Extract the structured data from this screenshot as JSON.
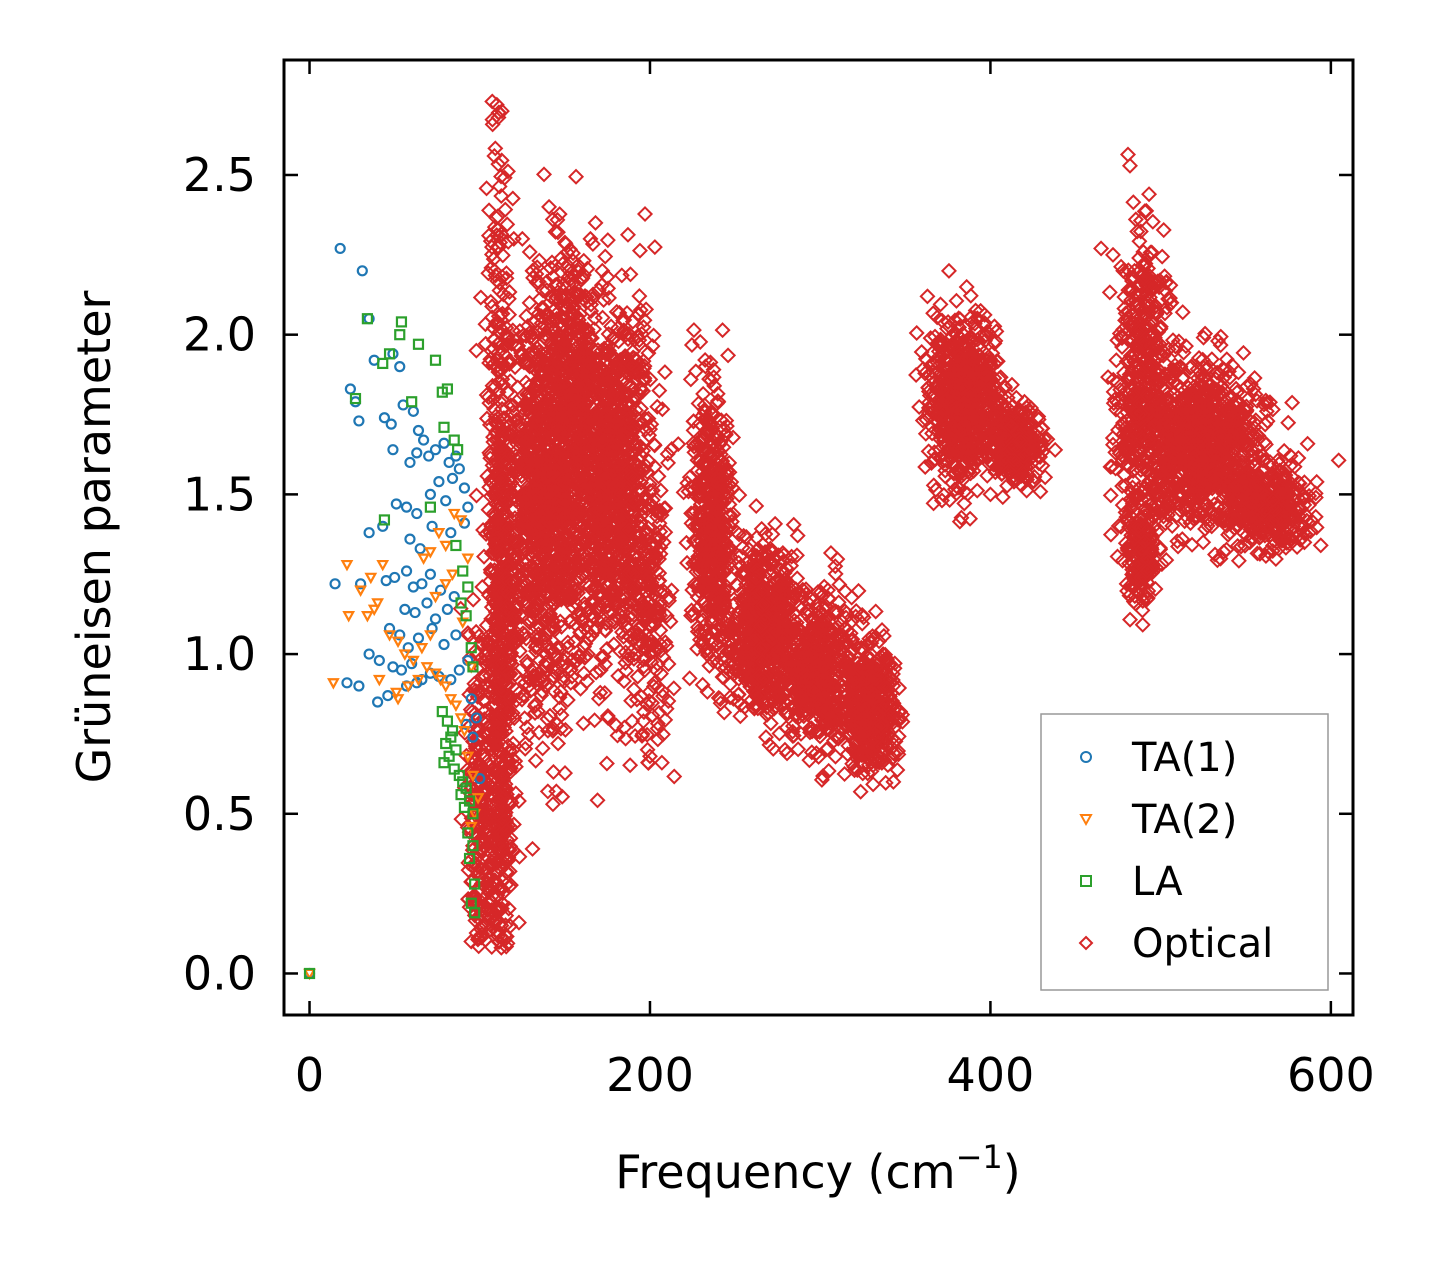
{
  "chart_data": {
    "type": "scatter",
    "title": "",
    "xlabel": "Frequency (cm",
    "xlabel_sup": "−1",
    "xlabel_close": ")",
    "ylabel": "Grüneisen parameter",
    "xlim": [
      -15,
      613
    ],
    "ylim": [
      -0.13,
      2.86
    ],
    "xticks": [
      0,
      200,
      400,
      600
    ],
    "xtick_labels": [
      "0",
      "200",
      "400",
      "600"
    ],
    "yticks": [
      0.0,
      0.5,
      1.0,
      1.5,
      2.0,
      2.5
    ],
    "ytick_labels": [
      "0.0",
      "0.5",
      "1.0",
      "1.5",
      "2.0",
      "2.5"
    ],
    "grid": false,
    "legend_position": "bottom-right",
    "series": [
      {
        "name": "TA(1)",
        "marker": "circle",
        "color": "#1f77b4",
        "points": [
          [
            0,
            0
          ],
          [
            18,
            2.27
          ],
          [
            31,
            2.2
          ],
          [
            35,
            2.05
          ],
          [
            24,
            1.83
          ],
          [
            38,
            1.92
          ],
          [
            49,
            1.94
          ],
          [
            53,
            1.9
          ],
          [
            27,
            1.79
          ],
          [
            29,
            1.73
          ],
          [
            44,
            1.74
          ],
          [
            48,
            1.72
          ],
          [
            55,
            1.78
          ],
          [
            61,
            1.76
          ],
          [
            64,
            1.7
          ],
          [
            67,
            1.67
          ],
          [
            49,
            1.64
          ],
          [
            59,
            1.6
          ],
          [
            63,
            1.63
          ],
          [
            70,
            1.62
          ],
          [
            74,
            1.64
          ],
          [
            79,
            1.66
          ],
          [
            82,
            1.6
          ],
          [
            86,
            1.62
          ],
          [
            88,
            1.58
          ],
          [
            91,
            1.52
          ],
          [
            93,
            1.46
          ],
          [
            51,
            1.47
          ],
          [
            57,
            1.46
          ],
          [
            63,
            1.44
          ],
          [
            71,
            1.5
          ],
          [
            76,
            1.54
          ],
          [
            80,
            1.48
          ],
          [
            84,
            1.55
          ],
          [
            35,
            1.38
          ],
          [
            43,
            1.4
          ],
          [
            59,
            1.36
          ],
          [
            65,
            1.33
          ],
          [
            72,
            1.4
          ],
          [
            83,
            1.38
          ],
          [
            91,
            1.41
          ],
          [
            15,
            1.22
          ],
          [
            30,
            1.22
          ],
          [
            45,
            1.23
          ],
          [
            50,
            1.24
          ],
          [
            57,
            1.26
          ],
          [
            61,
            1.21
          ],
          [
            66,
            1.22
          ],
          [
            71,
            1.25
          ],
          [
            77,
            1.2
          ],
          [
            85,
            1.18
          ],
          [
            56,
            1.14
          ],
          [
            62,
            1.13
          ],
          [
            69,
            1.16
          ],
          [
            74,
            1.11
          ],
          [
            81,
            1.14
          ],
          [
            47,
            1.08
          ],
          [
            53,
            1.06
          ],
          [
            58,
            1.02
          ],
          [
            64,
            1.05
          ],
          [
            72,
            1.08
          ],
          [
            79,
            1.03
          ],
          [
            86,
            1.06
          ],
          [
            35,
            1.0
          ],
          [
            41,
            0.98
          ],
          [
            49,
            0.96
          ],
          [
            54,
            0.95
          ],
          [
            60,
            0.97
          ],
          [
            66,
            0.92
          ],
          [
            71,
            0.94
          ],
          [
            76,
            0.93
          ],
          [
            83,
            0.92
          ],
          [
            88,
            0.95
          ],
          [
            93,
            0.98
          ],
          [
            22,
            0.91
          ],
          [
            29,
            0.9
          ],
          [
            46,
            0.87
          ],
          [
            40,
            0.85
          ],
          [
            57,
            0.9
          ],
          [
            63,
            0.91
          ],
          [
            95,
            0.86
          ],
          [
            98,
            0.8
          ],
          [
            92,
            0.78
          ],
          [
            96,
            0.74
          ],
          [
            100,
            0.61
          ]
        ]
      },
      {
        "name": "TA(2)",
        "marker": "triangle-down",
        "color": "#ff7f0e",
        "points": [
          [
            0,
            0
          ],
          [
            22,
            1.28
          ],
          [
            36,
            1.24
          ],
          [
            43,
            1.28
          ],
          [
            30,
            1.2
          ],
          [
            40,
            1.16
          ],
          [
            23,
            1.12
          ],
          [
            34,
            1.12
          ],
          [
            38,
            1.14
          ],
          [
            47,
            1.06
          ],
          [
            52,
            1.04
          ],
          [
            56,
            1.0
          ],
          [
            61,
            0.98
          ],
          [
            66,
            1.02
          ],
          [
            69,
            0.96
          ],
          [
            74,
            0.94
          ],
          [
            77,
            0.92
          ],
          [
            80,
            0.9
          ],
          [
            83,
            0.86
          ],
          [
            86,
            0.84
          ],
          [
            89,
            0.8
          ],
          [
            91,
            0.76
          ],
          [
            14,
            0.91
          ],
          [
            41,
            0.92
          ],
          [
            51,
            0.88
          ],
          [
            52,
            0.86
          ],
          [
            58,
            0.9
          ],
          [
            64,
            0.92
          ],
          [
            71,
            1.06
          ],
          [
            74,
            1.18
          ],
          [
            80,
            1.22
          ],
          [
            84,
            1.25
          ],
          [
            67,
            1.3
          ],
          [
            71,
            1.32
          ],
          [
            76,
            1.38
          ],
          [
            80,
            1.34
          ],
          [
            85,
            1.44
          ],
          [
            89,
            1.42
          ],
          [
            93,
            1.3
          ],
          [
            90,
            1.1
          ],
          [
            95,
            0.96
          ],
          [
            93,
            0.68
          ],
          [
            96,
            0.62
          ],
          [
            99,
            0.55
          ],
          [
            97,
            0.5
          ],
          [
            95,
            0.46
          ]
        ]
      },
      {
        "name": "LA",
        "marker": "square",
        "color": "#2ca02c",
        "points": [
          [
            0,
            0
          ],
          [
            34,
            2.05
          ],
          [
            54,
            2.04
          ],
          [
            53,
            2.0
          ],
          [
            64,
            1.97
          ],
          [
            74,
            1.92
          ],
          [
            43,
            1.91
          ],
          [
            47,
            1.94
          ],
          [
            27,
            1.8
          ],
          [
            60,
            1.79
          ],
          [
            81,
            1.83
          ],
          [
            78,
            1.82
          ],
          [
            79,
            1.71
          ],
          [
            85,
            1.67
          ],
          [
            87,
            1.64
          ],
          [
            44,
            1.42
          ],
          [
            71,
            1.46
          ],
          [
            86,
            1.34
          ],
          [
            90,
            1.26
          ],
          [
            93,
            1.21
          ],
          [
            89,
            1.16
          ],
          [
            92,
            1.12
          ],
          [
            95,
            1.02
          ],
          [
            96,
            0.96
          ],
          [
            78,
            0.82
          ],
          [
            81,
            0.79
          ],
          [
            83,
            0.74
          ],
          [
            80,
            0.72
          ],
          [
            84,
            0.76
          ],
          [
            86,
            0.7
          ],
          [
            79,
            0.66
          ],
          [
            82,
            0.68
          ],
          [
            85,
            0.64
          ],
          [
            88,
            0.62
          ],
          [
            90,
            0.6
          ],
          [
            92,
            0.58
          ],
          [
            89,
            0.56
          ],
          [
            94,
            0.54
          ],
          [
            91,
            0.52
          ],
          [
            96,
            0.5
          ],
          [
            93,
            0.44
          ],
          [
            96,
            0.4
          ],
          [
            94,
            0.36
          ],
          [
            97,
            0.28
          ],
          [
            95,
            0.22
          ],
          [
            97,
            0.19
          ]
        ]
      },
      {
        "name": "Optical",
        "marker": "diamond",
        "color": "#d62728",
        "clusters": [
          {
            "x": 112,
            "x_sd": 4,
            "y": 0.9,
            "y_sd": 0.85,
            "n": 900
          },
          {
            "x": 100,
            "x_sd": 4,
            "y": 0.5,
            "y_sd": 0.28,
            "n": 220
          },
          {
            "x": 140,
            "x_sd": 13,
            "y": 1.5,
            "y_sd": 0.3,
            "n": 1300
          },
          {
            "x": 178,
            "x_sd": 12,
            "y": 1.55,
            "y_sd": 0.27,
            "n": 1100
          },
          {
            "x": 153,
            "x_sd": 6,
            "y": 1.9,
            "y_sd": 0.16,
            "n": 220
          },
          {
            "x": 200,
            "x_sd": 7,
            "y": 1.1,
            "y_sd": 0.22,
            "n": 160
          },
          {
            "x": 236,
            "x_sd": 6,
            "y": 1.38,
            "y_sd": 0.22,
            "n": 500
          },
          {
            "x": 266,
            "x_sd": 11,
            "y": 1.08,
            "y_sd": 0.13,
            "n": 700
          },
          {
            "x": 300,
            "x_sd": 10,
            "y": 0.95,
            "y_sd": 0.12,
            "n": 500
          },
          {
            "x": 330,
            "x_sd": 8,
            "y": 0.83,
            "y_sd": 0.1,
            "n": 450
          },
          {
            "x": 383,
            "x_sd": 10,
            "y": 1.8,
            "y_sd": 0.12,
            "n": 700
          },
          {
            "x": 415,
            "x_sd": 7,
            "y": 1.66,
            "y_sd": 0.06,
            "n": 350
          },
          {
            "x": 490,
            "x_sd": 8,
            "y": 1.82,
            "y_sd": 0.25,
            "n": 500
          },
          {
            "x": 525,
            "x_sd": 17,
            "y": 1.66,
            "y_sd": 0.12,
            "n": 900
          },
          {
            "x": 562,
            "x_sd": 12,
            "y": 1.46,
            "y_sd": 0.06,
            "n": 400
          },
          {
            "x": 488,
            "x_sd": 5,
            "y": 1.3,
            "y_sd": 0.07,
            "n": 150
          }
        ],
        "outliers": [
          [
            98,
            1.95
          ],
          [
            95,
            0.1
          ],
          [
            123,
            0.54
          ],
          [
            131,
            0.39
          ],
          [
            140,
            0.57
          ],
          [
            143,
            0.53
          ],
          [
            145,
            0.57
          ],
          [
            146,
            0.72
          ],
          [
            147,
            0.83
          ],
          [
            170,
            0.86
          ],
          [
            185,
            0.77
          ],
          [
            200,
            0.68
          ],
          [
            207,
            0.66
          ],
          [
            224,
            1.86
          ],
          [
            110,
            2.72
          ],
          [
            111,
            2.68
          ],
          [
            113,
            2.7
          ],
          [
            120,
            2.3
          ],
          [
            125,
            2.3
          ],
          [
            131,
            2.2
          ],
          [
            146,
            1.95
          ],
          [
            168,
            2.35
          ],
          [
            165,
            2.3
          ],
          [
            160,
            2.18
          ],
          [
            172,
            2.2
          ],
          [
            170,
            2.14
          ],
          [
            186,
            2.0
          ],
          [
            194,
            1.88
          ],
          [
            343,
            0.6
          ],
          [
            363,
            2.12
          ],
          [
            465,
            2.27
          ],
          [
            472,
            2.25
          ],
          [
            478,
            2.2
          ],
          [
            525,
            1.35
          ],
          [
            530,
            1.4
          ],
          [
            537,
            1.32
          ],
          [
            566,
            1.34
          ],
          [
            578,
            1.4
          ],
          [
            584,
            1.38
          ],
          [
            428,
            1.62
          ],
          [
            420,
            1.79
          ],
          [
            400,
            1.5
          ],
          [
            480,
            1.22
          ],
          [
            492,
            1.26
          ]
        ]
      }
    ]
  }
}
